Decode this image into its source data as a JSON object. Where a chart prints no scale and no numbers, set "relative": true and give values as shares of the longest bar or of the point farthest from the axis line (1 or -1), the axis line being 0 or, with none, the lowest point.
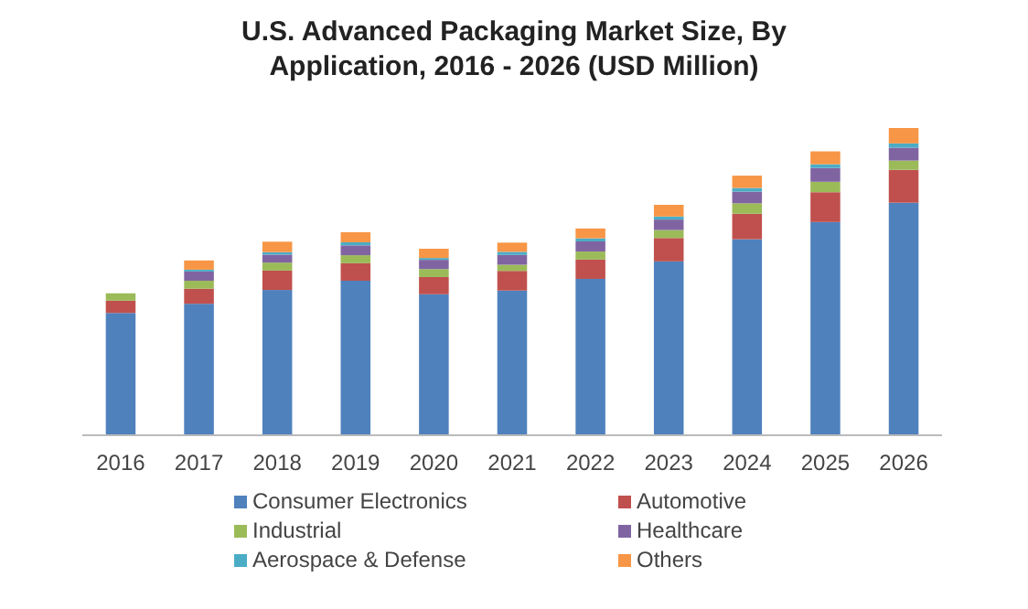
{
  "chart_data": {
    "type": "bar",
    "title": "U.S. Advanced Packaging Market Size, By Application, 2016 - 2026 (USD Million)",
    "relative": true,
    "stacked": true,
    "legend": "bottom",
    "categories": [
      "2016",
      "2017",
      "2018",
      "2019",
      "2020",
      "2021",
      "2022",
      "2023",
      "2024",
      "2025",
      "2026"
    ],
    "series": [
      {
        "name": "Consumer Electronics",
        "color": "#4f81bd",
        "values": [
          0.398,
          0.428,
          0.473,
          0.503,
          0.459,
          0.471,
          0.509,
          0.566,
          0.638,
          0.694,
          0.757
        ]
      },
      {
        "name": "Automotive",
        "color": "#c0504d",
        "values": [
          0.04,
          0.049,
          0.063,
          0.057,
          0.056,
          0.064,
          0.063,
          0.076,
          0.083,
          0.097,
          0.107
        ]
      },
      {
        "name": "Industrial",
        "color": "#9bbb59",
        "values": [
          0.024,
          0.026,
          0.026,
          0.026,
          0.026,
          0.02,
          0.026,
          0.026,
          0.034,
          0.034,
          0.03
        ]
      },
      {
        "name": "Healthcare",
        "color": "#8064a2",
        "values": [
          null,
          0.03,
          0.026,
          0.032,
          0.03,
          0.032,
          0.033,
          0.034,
          0.038,
          0.045,
          0.042
        ]
      },
      {
        "name": "Aerospace & Defense",
        "color": "#4bacc6",
        "values": [
          null,
          0.006,
          0.008,
          0.01,
          0.006,
          0.01,
          0.01,
          0.01,
          0.012,
          0.012,
          0.014
        ]
      },
      {
        "name": "Others",
        "color": "#f79646",
        "values": [
          null,
          0.03,
          0.034,
          0.033,
          0.03,
          0.03,
          0.032,
          0.038,
          0.04,
          0.042,
          0.05
        ]
      }
    ]
  }
}
